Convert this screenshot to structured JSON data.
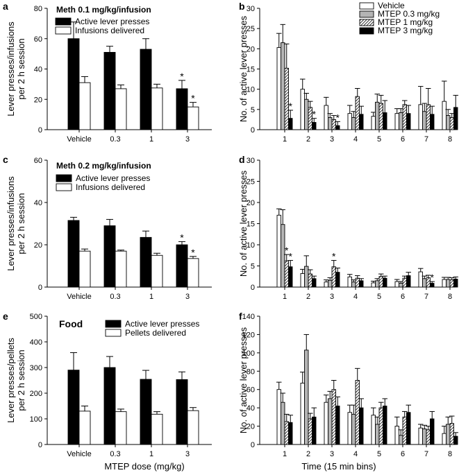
{
  "figure": {
    "x_label_left": "MTEP dose (mg/kg)",
    "x_label_right": "Time (15 min bins)"
  },
  "colors": {
    "black": "#000000",
    "white": "#ffffff",
    "gray": "#b4b4b4"
  },
  "chart_data": [
    {
      "panel": "a",
      "type": "bar",
      "title": "Meth 0.1 mg/kg/infusion",
      "ylabel": [
        "Lever presses/infusions",
        "per 2 h session"
      ],
      "xlabel": "",
      "categories": [
        "Vehicle",
        "0.3",
        "1",
        "3"
      ],
      "ylim": [
        0,
        80
      ],
      "yticks": [
        0,
        20,
        40,
        60,
        80
      ],
      "legend_position": "top-left",
      "series": [
        {
          "name": "Active lever presses",
          "fill": "black",
          "values": [
            60,
            51,
            53,
            27
          ],
          "errors": [
            11,
            4,
            7,
            5.5
          ],
          "sig": [
            false,
            false,
            false,
            true
          ]
        },
        {
          "name": "Infusions delivered",
          "fill": "white",
          "values": [
            31,
            27,
            27.5,
            15
          ],
          "errors": [
            4,
            2.5,
            2.5,
            3
          ],
          "sig": [
            false,
            false,
            false,
            true
          ]
        }
      ]
    },
    {
      "panel": "b",
      "type": "bar",
      "ylabel": [
        "No. of active lever presses"
      ],
      "xlabel": "",
      "categories": [
        "1",
        "2",
        "3",
        "4",
        "5",
        "6",
        "7",
        "8"
      ],
      "ylim": [
        0,
        30
      ],
      "yticks": [
        0,
        5,
        10,
        15,
        20,
        25,
        30
      ],
      "legend_position": "top-right",
      "series": [
        {
          "name": "Vehicle",
          "fill": "white",
          "values": [
            20.3,
            10,
            6,
            4,
            3.3,
            4,
            6.2,
            7
          ],
          "errors": [
            3.5,
            2.5,
            2,
            2,
            1,
            1.2,
            4.5,
            5
          ],
          "sig": [
            false,
            false,
            false,
            false,
            false,
            false,
            false,
            false
          ]
        },
        {
          "name": "MTEP 0.3 mg/kg",
          "fill": "gray",
          "values": [
            21.5,
            7.5,
            3,
            3,
            6.8,
            4.2,
            4.5,
            3.5
          ],
          "errors": [
            4.5,
            1.5,
            1,
            1.5,
            2,
            1,
            2,
            1.5
          ],
          "sig": [
            false,
            false,
            false,
            false,
            false,
            false,
            false,
            false
          ]
        },
        {
          "name": "MTEP 1 mg/kg",
          "fill": "hatch",
          "values": [
            15.2,
            5.5,
            2.5,
            8.2,
            6.5,
            6.2,
            6.2,
            3
          ],
          "errors": [
            6,
            1.5,
            1,
            2,
            2,
            1,
            4,
            1
          ],
          "sig": [
            false,
            false,
            false,
            false,
            false,
            false,
            false,
            false
          ]
        },
        {
          "name": "MTEP 3 mg/kg",
          "fill": "black",
          "values": [
            2.8,
            1.8,
            1,
            3.8,
            4.2,
            4,
            3.8,
            5.5
          ],
          "errors": [
            2,
            1,
            1,
            2,
            3,
            2,
            2,
            3
          ],
          "sig": [
            true,
            true,
            true,
            false,
            false,
            false,
            false,
            false
          ]
        }
      ]
    },
    {
      "panel": "c",
      "type": "bar",
      "title": "Meth 0.2 mg/kg/infusion",
      "ylabel": [
        "Lever presses/infusions",
        "per 2 h session"
      ],
      "xlabel": "",
      "categories": [
        "Vehicle",
        "0.3",
        "1",
        "3"
      ],
      "ylim": [
        0,
        60
      ],
      "yticks": [
        0,
        20,
        40,
        60
      ],
      "legend_position": "top-left",
      "series": [
        {
          "name": "Active lever presses",
          "fill": "black",
          "values": [
            31.5,
            29,
            23.5,
            20
          ],
          "errors": [
            1.5,
            3,
            3,
            1.5
          ],
          "sig": [
            false,
            false,
            false,
            true
          ]
        },
        {
          "name": "Infusions delivered",
          "fill": "white",
          "values": [
            17,
            17,
            15,
            13.5
          ],
          "errors": [
            1,
            0.5,
            1,
            1
          ],
          "sig": [
            false,
            false,
            false,
            true
          ]
        }
      ]
    },
    {
      "panel": "d",
      "type": "bar",
      "ylabel": [
        "No. of active lever presses"
      ],
      "xlabel": "",
      "categories": [
        "1",
        "2",
        "3",
        "4",
        "5",
        "6",
        "7",
        "8"
      ],
      "ylim": [
        0,
        30
      ],
      "yticks": [
        0,
        5,
        10,
        15,
        20,
        25,
        30
      ],
      "legend_position": "none",
      "series": [
        {
          "name": "Vehicle",
          "fill": "white",
          "values": [
            17,
            3.2,
            1.2,
            2.4,
            1,
            1.3,
            3.6,
            1.8
          ],
          "errors": [
            1.5,
            1,
            0.5,
            0.6,
            0.4,
            0.5,
            0.8,
            0.5
          ],
          "sig": [
            false,
            false,
            false,
            false,
            false,
            false,
            false,
            false
          ]
        },
        {
          "name": "MTEP 0.3 mg/kg",
          "fill": "gray",
          "values": [
            14.8,
            4.9,
            1.6,
            1.2,
            1.5,
            0.9,
            2,
            1.8
          ],
          "errors": [
            3.5,
            2.5,
            0.6,
            0.5,
            0.5,
            0.4,
            0.6,
            0.5
          ],
          "sig": [
            false,
            false,
            false,
            false,
            false,
            false,
            false,
            false
          ]
        },
        {
          "name": "MTEP 1 mg/kg",
          "fill": "hatch",
          "values": [
            6.2,
            3.1,
            4.8,
            2.1,
            2.5,
            2.1,
            2.2,
            1.7
          ],
          "errors": [
            1.5,
            1,
            1.5,
            0.6,
            0.6,
            0.5,
            0.6,
            0.5
          ],
          "sig": [
            true,
            false,
            true,
            false,
            false,
            false,
            false,
            false
          ]
        },
        {
          "name": "MTEP 3 mg/kg",
          "fill": "black",
          "values": [
            4.8,
            2,
            3.5,
            1.5,
            2.1,
            2.7,
            0.9,
            1.9
          ],
          "errors": [
            1.5,
            0.6,
            1,
            0.5,
            0.5,
            0.8,
            0.4,
            0.5
          ],
          "sig": [
            true,
            false,
            false,
            false,
            false,
            false,
            true,
            false
          ]
        }
      ]
    },
    {
      "panel": "e",
      "type": "bar",
      "title": "Food",
      "ylabel": [
        "Lever presses/pellets",
        "per 2 h session"
      ],
      "xlabel": "MTEP dose (mg/kg)",
      "categories": [
        "Vehicle",
        "0.3",
        "1",
        "3"
      ],
      "ylim": [
        0,
        500
      ],
      "yticks": [
        0,
        100,
        200,
        300,
        400,
        500
      ],
      "legend_position": "top-right",
      "series": [
        {
          "name": "Active lever presses",
          "fill": "black",
          "values": [
            290,
            300,
            254,
            253
          ],
          "errors": [
            68,
            43,
            35,
            30
          ],
          "sig": [
            false,
            false,
            false,
            false
          ]
        },
        {
          "name": "Pellets delivered",
          "fill": "white",
          "values": [
            130,
            128,
            118,
            132
          ],
          "errors": [
            20,
            10,
            10,
            12
          ],
          "sig": [
            false,
            false,
            false,
            false
          ]
        }
      ]
    },
    {
      "panel": "f",
      "type": "bar",
      "ylabel": [
        "No. of active lever presses"
      ],
      "xlabel": "Time (15 min bins)",
      "categories": [
        "1",
        "2",
        "3",
        "4",
        "5",
        "6",
        "7",
        "8"
      ],
      "ylim": [
        0,
        140
      ],
      "yticks": [
        0,
        20,
        40,
        60,
        80,
        100,
        120,
        140
      ],
      "legend_position": "none",
      "series": [
        {
          "name": "Vehicle",
          "fill": "white",
          "values": [
            60,
            67,
            46,
            35,
            32,
            20,
            18,
            12
          ],
          "errors": [
            8,
            12,
            8,
            8,
            8,
            10,
            4,
            8
          ],
          "sig": [
            false,
            false,
            false,
            false,
            false,
            false,
            false,
            false
          ]
        },
        {
          "name": "MTEP 0.3 mg/kg",
          "fill": "gray",
          "values": [
            46,
            103,
            50,
            33,
            22,
            10,
            17,
            22
          ],
          "errors": [
            10,
            17,
            8,
            10,
            8,
            6,
            4,
            8
          ],
          "sig": [
            false,
            false,
            false,
            false,
            false,
            false,
            false,
            false
          ]
        },
        {
          "name": "MTEP 1 mg/kg",
          "fill": "hatch",
          "values": [
            25,
            28,
            60,
            70,
            40,
            30,
            16,
            23
          ],
          "errors": [
            8,
            6,
            10,
            13,
            6,
            6,
            4,
            8
          ],
          "sig": [
            false,
            false,
            false,
            false,
            false,
            false,
            false,
            false
          ]
        },
        {
          "name": "MTEP 3 mg/kg",
          "fill": "black",
          "values": [
            24,
            30,
            42,
            40,
            42,
            35,
            28,
            9
          ],
          "errors": [
            8,
            10,
            10,
            10,
            8,
            8,
            8,
            4
          ],
          "sig": [
            false,
            false,
            false,
            false,
            false,
            false,
            false,
            false
          ]
        }
      ]
    }
  ]
}
